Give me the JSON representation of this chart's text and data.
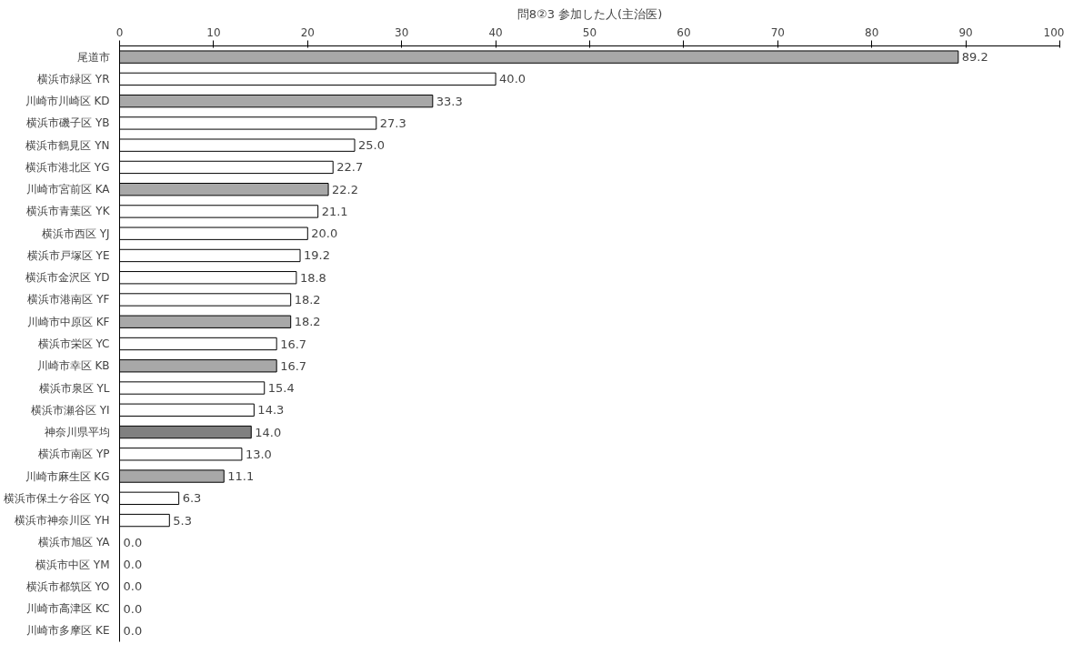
{
  "chart_data": {
    "type": "bar",
    "orientation": "horizontal",
    "title": "問8②3 参加した人(主治医)",
    "categories": [
      "尾道市",
      "横浜市緑区 YR",
      "川崎市川崎区 KD",
      "横浜市磯子区 YB",
      "横浜市鶴見区 YN",
      "横浜市港北区 YG",
      "川崎市宮前区 KA",
      "横浜市青葉区 YK",
      "横浜市西区 YJ",
      "横浜市戸塚区 YE",
      "横浜市金沢区 YD",
      "横浜市港南区 YF",
      "川崎市中原区 KF",
      "横浜市栄区 YC",
      "川崎市幸区 KB",
      "横浜市泉区 YL",
      "横浜市瀬谷区 YI",
      "神奈川県平均",
      "横浜市南区 YP",
      "川崎市麻生区 KG",
      "横浜市保土ケ谷区 YQ",
      "横浜市神奈川区 YH",
      "横浜市旭区 YA",
      "横浜市中区 YM",
      "横浜市都筑区 YO",
      "川崎市高津区 KC",
      "川崎市多摩区 KE"
    ],
    "values": [
      89.2,
      40.0,
      33.3,
      27.3,
      25.0,
      22.7,
      22.2,
      21.1,
      20.0,
      19.2,
      18.8,
      18.2,
      18.2,
      16.7,
      16.7,
      15.4,
      14.3,
      14.0,
      13.0,
      11.1,
      6.3,
      5.3,
      0.0,
      0.0,
      0.0,
      0.0,
      0.0
    ],
    "value_labels": [
      "89.2",
      "40.0",
      "33.3",
      "27.3",
      "25.0",
      "22.7",
      "22.2",
      "21.1",
      "20.0",
      "19.2",
      "18.8",
      "18.2",
      "18.2",
      "16.7",
      "16.7",
      "15.4",
      "14.3",
      "14.0",
      "13.0",
      "11.1",
      "6.3",
      "5.3",
      "0.0",
      "0.0",
      "0.0",
      "0.0",
      "0.0"
    ],
    "colors": [
      "#a8a8a8",
      "#ffffff",
      "#a8a8a8",
      "#ffffff",
      "#ffffff",
      "#ffffff",
      "#a8a8a8",
      "#ffffff",
      "#ffffff",
      "#ffffff",
      "#ffffff",
      "#ffffff",
      "#a8a8a8",
      "#ffffff",
      "#a8a8a8",
      "#ffffff",
      "#ffffff",
      "#808080",
      "#ffffff",
      "#a8a8a8",
      "#ffffff",
      "#ffffff",
      "#ffffff",
      "#ffffff",
      "#ffffff",
      "#ffffff",
      "#ffffff"
    ],
    "xlim": [
      0,
      100
    ],
    "xticks": [
      0,
      10,
      20,
      30,
      40,
      50,
      60,
      70,
      80,
      90,
      100
    ],
    "grid": false
  }
}
